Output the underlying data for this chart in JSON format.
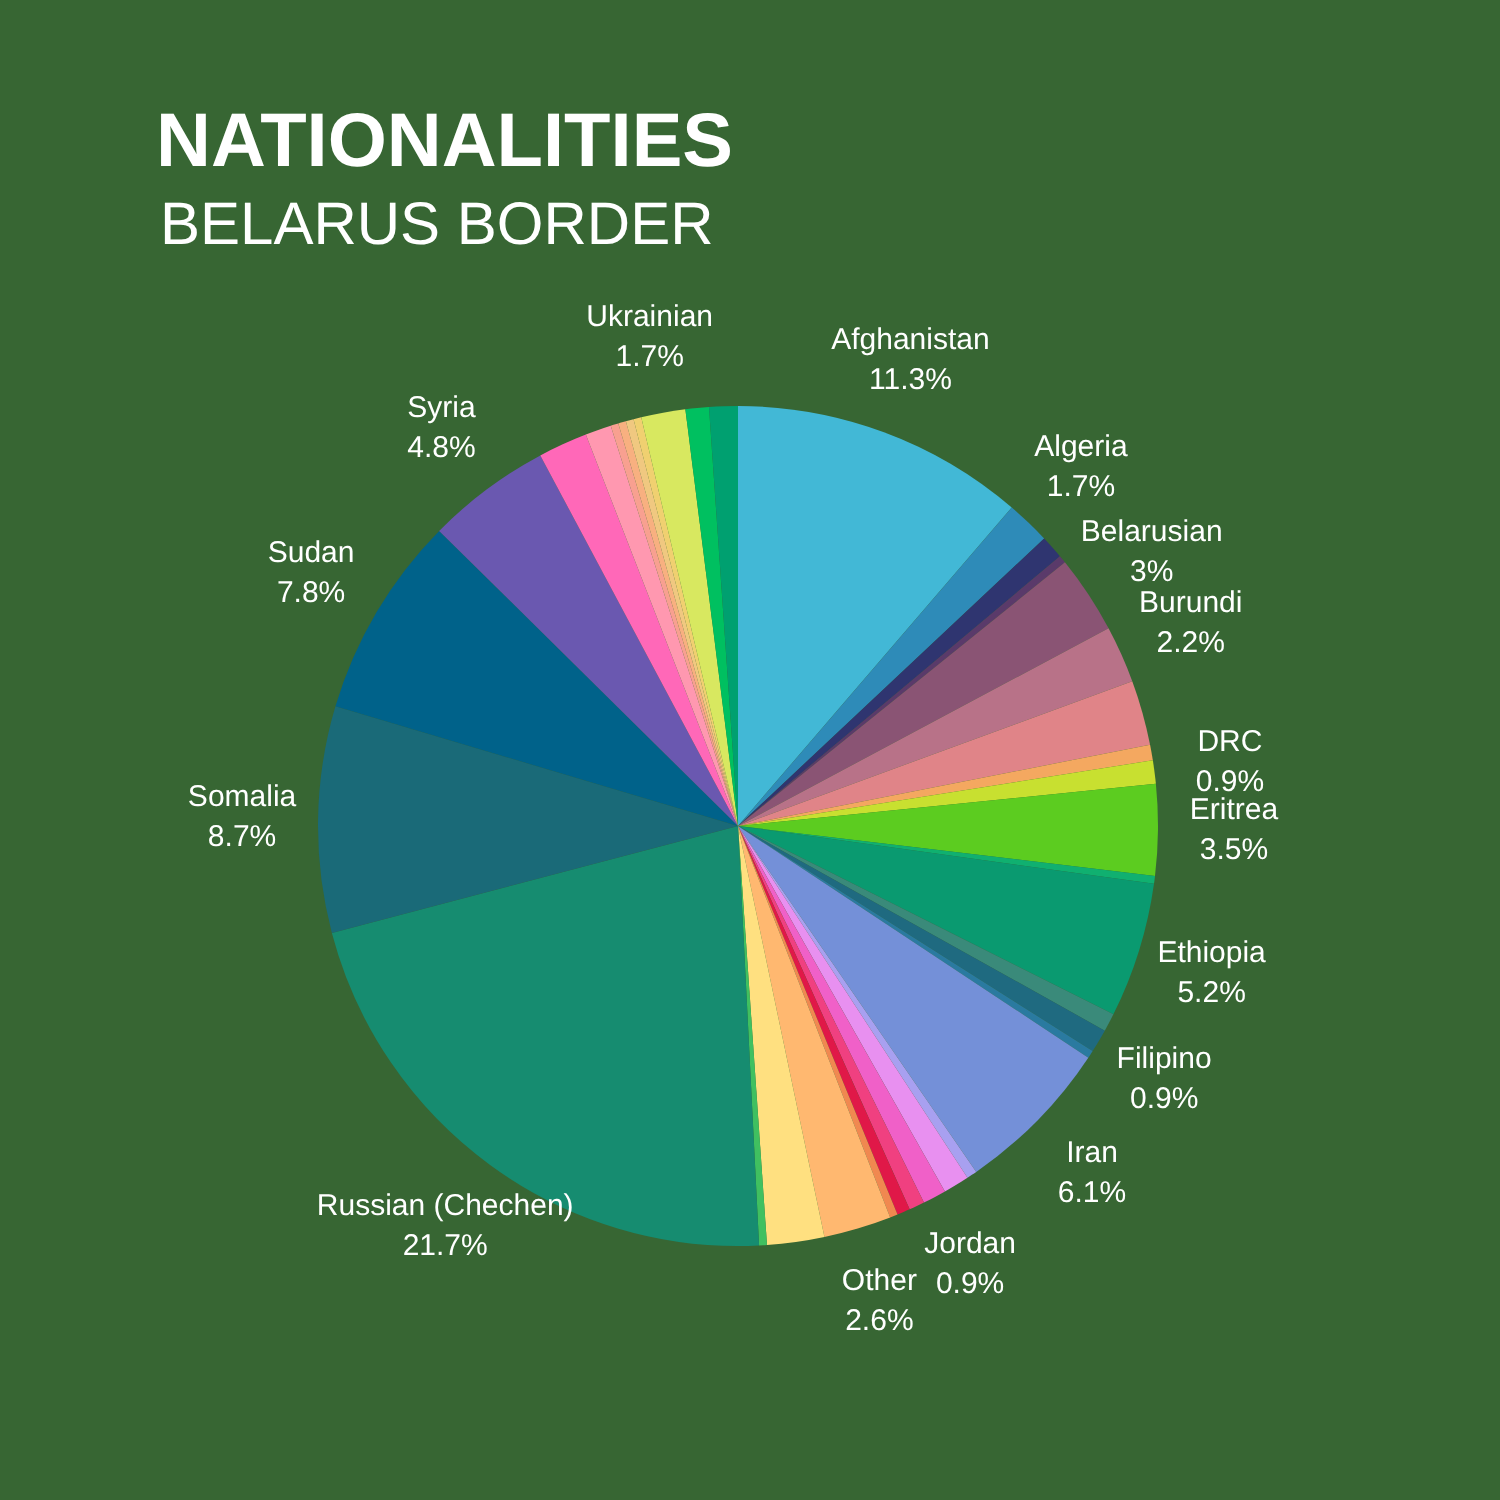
{
  "chart_data": {
    "type": "pie",
    "title": "NATIONALITIES",
    "subtitle": "BELARUS BORDER",
    "categories": [
      "Afghanistan",
      "Algeria",
      null,
      null,
      "Belarusian",
      "Burundi",
      null,
      null,
      "DRC",
      "Eritrea",
      null,
      "Ethiopia",
      null,
      "Filipino",
      null,
      "Iran",
      null,
      null,
      "Jordan",
      null,
      null,
      null,
      "Other",
      null,
      null,
      "Russian (Chechen)",
      "Somalia",
      "Sudan",
      "Syria",
      null,
      null,
      null,
      null,
      null,
      null,
      "Ukrainian",
      null,
      null
    ],
    "values": [
      11.3,
      1.7,
      0.9,
      0.3,
      3,
      2.2,
      2.5,
      0.6,
      0.9,
      3.5,
      0.3,
      5.2,
      0.7,
      0.9,
      0.3,
      6.1,
      0.4,
      1.0,
      0.9,
      0.6,
      0.5,
      0.3,
      2.6,
      2.2,
      0.3,
      21.7,
      8.7,
      7.8,
      4.8,
      1.9,
      1.0,
      0.3,
      0.3,
      0.3,
      0.3,
      1.7,
      0.9,
      1.1
    ],
    "value_labels": [
      "11.3%",
      "1.7%",
      null,
      null,
      "3%",
      "2.2%",
      null,
      null,
      "0.9%",
      "3.5%",
      null,
      "5.2%",
      null,
      "0.9%",
      null,
      "6.1%",
      null,
      null,
      "0.9%",
      null,
      null,
      null,
      "2.6%",
      null,
      null,
      "21.7%",
      "8.7%",
      "7.8%",
      "4.8%",
      null,
      null,
      null,
      null,
      null,
      null,
      "1.7%",
      null,
      null
    ],
    "colors": [
      "#42b8d6",
      "#2e8bb8",
      "#2f3570",
      "#5a3a6a",
      "#8a5474",
      "#b87288",
      "#e08488",
      "#f4a860",
      "#c8e030",
      "#5ccc20",
      "#10b070",
      "#0a9a70",
      "#3a8a7a",
      "#1f6a80",
      "#2a7aa0",
      "#7490d8",
      "#a8a0f0",
      "#e890f0",
      "#f060c8",
      "#f04080",
      "#e01848",
      "#f08850",
      "#ffb870",
      "#ffe080",
      "#40c060",
      "#168c70",
      "#1a6a78",
      "#00628a",
      "#6a58b0",
      "#ff68b8",
      "#ff98b0",
      "#f8a090",
      "#f8b080",
      "#f0c880",
      "#f0d070",
      "#d8e860",
      "#00c060",
      "#00a070"
    ],
    "legend": false
  }
}
